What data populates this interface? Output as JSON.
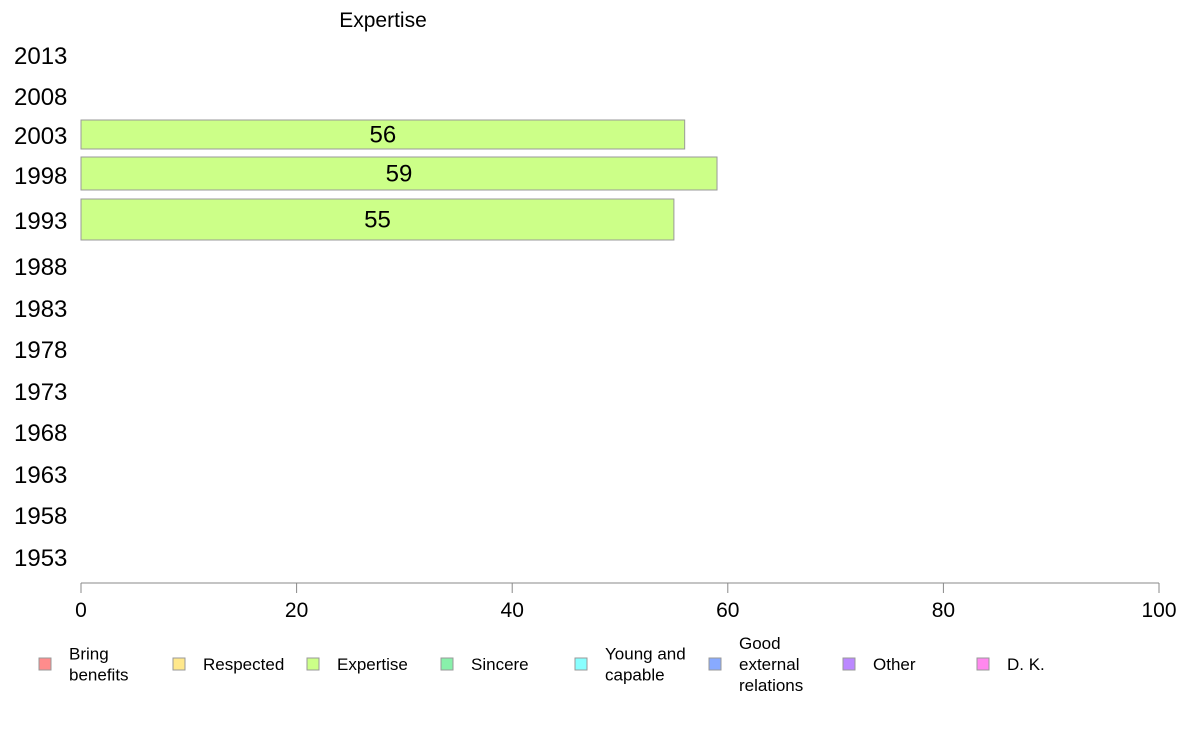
{
  "chart_data": {
    "type": "bar",
    "orientation": "horizontal",
    "title": "Expertise",
    "categories": [
      "2013",
      "2008",
      "2003",
      "1998",
      "1993",
      "1988",
      "1983",
      "1978",
      "1973",
      "1968",
      "1963",
      "1958",
      "1953"
    ],
    "series": [
      {
        "name": "Expertise",
        "color": "#ccff88",
        "values": [
          null,
          null,
          56,
          59,
          55,
          null,
          null,
          null,
          null,
          null,
          null,
          null,
          null
        ]
      }
    ],
    "xlim": [
      0,
      100
    ],
    "xticks": [
      "0",
      "20",
      "40",
      "60",
      "80",
      "100"
    ],
    "grid": false,
    "legend_position": "bottom",
    "legend": [
      {
        "label": [
          "Bring",
          "benefits"
        ],
        "color": "#ff8c8c"
      },
      {
        "label": [
          "Respected"
        ],
        "color": "#ffe88c"
      },
      {
        "label": [
          "Expertise"
        ],
        "color": "#ccff88"
      },
      {
        "label": [
          "Sincere"
        ],
        "color": "#88f0aa"
      },
      {
        "label": [
          "Young and",
          "capable"
        ],
        "color": "#88ffff"
      },
      {
        "label": [
          "Good",
          "external",
          "relations"
        ],
        "color": "#88aaff"
      },
      {
        "label": [
          "Other"
        ],
        "color": "#bb88ff"
      },
      {
        "label": [
          "D. K."
        ],
        "color": "#ff88ee"
      }
    ]
  }
}
